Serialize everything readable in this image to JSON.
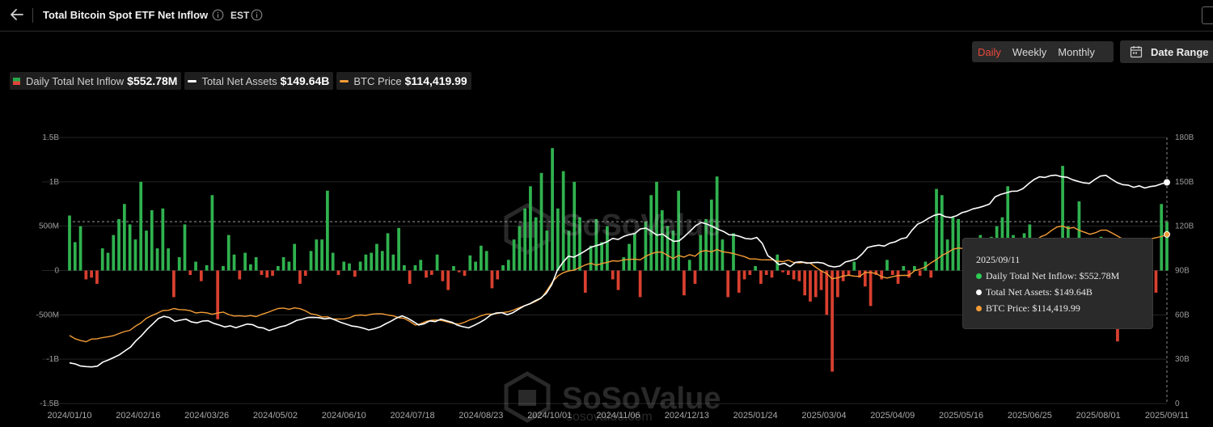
{
  "header": {
    "title": "Total Bitcoin Spot ETF Net Inflow",
    "timezone": "EST"
  },
  "period_options": [
    {
      "label": "Daily",
      "active": true
    },
    {
      "label": "Weekly",
      "active": false
    },
    {
      "label": "Monthly",
      "active": false
    }
  ],
  "date_range_label": "Date Range",
  "legend": {
    "inflow": {
      "label": "Daily Total Net Inflow",
      "value": "$552.78M"
    },
    "assets": {
      "label": "Total Net Assets",
      "value": "$149.64B"
    },
    "price": {
      "label": "BTC Price",
      "value": "$114,419.99"
    }
  },
  "tooltip": {
    "date": "2025/09/11",
    "inflow_line": "Daily Total Net Inflow: $552.78M",
    "assets_line": "Total Net Assets: $149.64B",
    "price_line": "BTC Price: $114,419.99"
  },
  "watermark": {
    "brand": "SoSoValue",
    "url": "sosovalue.com"
  },
  "colors": {
    "inflow_positive": "#30b24f",
    "inflow_negative": "#d9402f",
    "assets_line": "#ffffff",
    "price_line": "#f39c36",
    "active_period": "#e8493a",
    "tooltip_inflow_dot": "#2ecc55",
    "tooltip_assets_dot": "#ffffff",
    "tooltip_price_dot": "#f39c36"
  },
  "icons": [
    "back-arrow-icon",
    "info-icon",
    "calendar-icon",
    "edit-icon"
  ],
  "chart_data": {
    "type": "bar+line",
    "grid": "horizontal",
    "xlim": [
      "2024-01-10",
      "2025-09-11"
    ],
    "y_left": {
      "ticks": [
        "1.5B",
        "1B",
        "500M",
        "0",
        "-500M",
        "-1B",
        "-1.5B"
      ],
      "range": [
        -1.5,
        1.5
      ],
      "unit": "B USD"
    },
    "y_right": {
      "ticks": [
        "180B",
        "150B",
        "120B",
        "90B",
        "60B",
        "30B",
        "0"
      ],
      "range": [
        0,
        180
      ],
      "unit": "B USD"
    },
    "x_ticks": [
      "2024/01/10",
      "2024/02/16",
      "2024/03/26",
      "2024/05/02",
      "2024/06/10",
      "2024/07/18",
      "2024/08/23",
      "2024/10/01",
      "2024/11/06",
      "2024/12/13",
      "2025/01/24",
      "2025/03/04",
      "2025/04/09",
      "2025/05/16",
      "2025/06/25",
      "2025/08/01",
      "2025/09/11"
    ],
    "reference_line": 0.55,
    "inflow_series": {
      "name": "Daily Total Net Inflow",
      "unit": "B USD",
      "values": [
        0.62,
        0.32,
        0.5,
        -0.1,
        -0.08,
        -0.15,
        0.25,
        0.2,
        0.4,
        0.58,
        0.75,
        0.52,
        0.35,
        1.0,
        0.45,
        0.68,
        0.25,
        0.7,
        0.25,
        -0.3,
        0.15,
        0.52,
        -0.05,
        0.1,
        -0.12,
        0.06,
        0.85,
        -0.55,
        0.05,
        0.4,
        0.18,
        -0.1,
        0.2,
        0.07,
        0.15,
        -0.05,
        -0.08,
        -0.06,
        0.05,
        0.15,
        0.1,
        0.3,
        -0.15,
        -0.06,
        0.22,
        0.35,
        0.35,
        0.9,
        0.2,
        -0.05,
        0.1,
        0.08,
        -0.07,
        0.1,
        0.18,
        0.2,
        0.3,
        0.22,
        0.42,
        0.18,
        0.48,
        0.06,
        -0.15,
        0.06,
        0.12,
        -0.08,
        -0.05,
        0.18,
        -0.12,
        -0.22,
        0.05,
        -0.02,
        -0.06,
        0.17,
        0.1,
        0.28,
        0.22,
        -0.2,
        -0.1,
        0.06,
        0.12,
        0.35,
        0.5,
        0.7,
        0.95,
        0.6,
        1.1,
        0.45,
        1.38,
        0.7,
        1.12,
        0.45,
        1.0,
        0.6,
        -0.25,
        0.28,
        0.58,
        0.32,
        0.5,
        -0.1,
        -0.22,
        0.15,
        0.3,
        0.42,
        -0.3,
        0.55,
        0.85,
        1.0,
        0.68,
        0.5,
        0.45,
        0.9,
        -0.28,
        0.12,
        -0.15,
        0.4,
        0.58,
        0.8,
        1.06,
        0.35,
        -0.3,
        0.42,
        -0.25,
        -0.1,
        -0.05,
        0.05,
        -0.15,
        -0.05,
        -0.08,
        0.18,
        -0.02,
        -0.05,
        -0.1,
        -0.12,
        -0.28,
        -0.35,
        -0.3,
        -0.22,
        -0.5,
        -1.14,
        -0.3,
        -0.12,
        -0.05,
        0.1,
        -0.08,
        -0.18,
        -0.4,
        -0.05,
        -0.1,
        0.12,
        -0.05,
        -0.15,
        0.05,
        -0.08,
        0.05,
        -0.06,
        0.1,
        -0.08,
        0.92,
        0.85,
        0.35,
        0.6,
        0.58,
        0.35,
        0.1,
        0.3,
        0.4,
        0.28,
        0.38,
        0.5,
        0.6,
        0.95,
        0.4,
        -0.25,
        0.42,
        0.52,
        0.1,
        -0.05,
        0.15,
        0.2,
        0.28,
        1.18,
        0.5,
        0.3,
        0.78,
        -0.12,
        0.18,
        0.3,
        0.38,
        0.35,
        0.22,
        -0.8,
        0.25,
        0.35,
        0.15,
        0.1,
        -0.15,
        0.12,
        -0.25,
        0.75,
        0.55
      ],
      "last_value": 0.55278
    },
    "assets_series": {
      "name": "Total Net Assets",
      "unit": "B USD",
      "values": [
        27.5,
        26.8,
        25.4,
        25.0,
        24.8,
        25.3,
        28.0,
        29.5,
        31.2,
        33.0,
        35.6,
        38.2,
        42.5,
        46.0,
        50.2,
        53.8,
        57.5,
        59.0,
        58.2,
        55.6,
        56.4,
        57.1,
        55.2,
        54.6,
        55.8,
        56.0,
        54.3,
        53.1,
        51.8,
        52.6,
        51.3,
        52.5,
        53.8,
        53.4,
        51.6,
        51.1,
        49.4,
        50.6,
        51.9,
        52.7,
        54.4,
        56.3,
        57.1,
        58.2,
        58.3,
        58.1,
        57.3,
        57.8,
        56.4,
        54.8,
        53.6,
        52.4,
        51.9,
        51.0,
        49.8,
        50.6,
        51.8,
        53.9,
        55.7,
        57.9,
        59.3,
        57.8,
        55.6,
        53.1,
        54.0,
        55.9,
        55.4,
        57.1,
        56.0,
        55.0,
        53.0,
        52.0,
        51.2,
        52.9,
        54.8,
        57.0,
        59.9,
        61.3,
        61.5,
        60.1,
        61.5,
        63.8,
        66.0,
        67.4,
        69.5,
        71.3,
        74.5,
        80.5,
        90.0,
        95.4,
        99.7,
        99.0,
        101.0,
        103.2,
        105.6,
        106.8,
        107.9,
        109.5,
        111.7,
        111.0,
        113.1,
        114.3,
        115.1,
        118.1,
        118.7,
        116.4,
        113.9,
        114.7,
        112.0,
        109.7,
        110.1,
        113.2,
        116.7,
        120.4,
        122.5,
        121.4,
        119.8,
        117.9,
        116.4,
        114.2,
        114.0,
        113.0,
        111.6,
        111.3,
        112.4,
        108.3,
        100.0,
        97.4,
        94.0,
        94.9,
        92.7,
        95.5,
        95.9,
        95.0,
        95.3,
        95.5,
        95.0,
        93.1,
        92.4,
        93.0,
        95.8,
        96.7,
        97.9,
        101.2,
        105.6,
        106.5,
        107.1,
        106.5,
        108.5,
        109.4,
        111.4,
        112.2,
        117.2,
        121.3,
        123.0,
        125.4,
        127.3,
        128.2,
        126.4,
        125.9,
        127.0,
        129.1,
        130.1,
        131.7,
        132.5,
        133.6,
        135.0,
        139.8,
        141.5,
        142.5,
        143.6,
        143.7,
        145.3,
        148.6,
        151.5,
        153.4,
        153.0,
        154.2,
        154.5,
        153.4,
        153.1,
        151.4,
        150.3,
        149.3,
        148.9,
        151.6,
        153.9,
        154.4,
        151.8,
        149.5,
        148.1,
        147.8,
        146.3,
        147.3,
        145.8,
        146.8,
        147.3,
        148.6,
        149.64
      ],
      "last_value": 149.64
    },
    "price_series": {
      "name": "BTC Price",
      "unit": "thousand USD",
      "values": [
        46.0,
        43.9,
        42.6,
        41.8,
        43.6,
        43.8,
        44.6,
        45.2,
        45.9,
        47.3,
        48.7,
        49.5,
        52.3,
        54.5,
        57.7,
        59.5,
        61.1,
        62.9,
        63.1,
        64.3,
        63.6,
        63.4,
        62.8,
        61.3,
        61.7,
        61.4,
        60.4,
        61.2,
        61.9,
        60.2,
        59.2,
        59.4,
        59.0,
        59.5,
        58.8,
        60.3,
        61.5,
        62.9,
        64.3,
        64.6,
        63.8,
        64.7,
        64.2,
        62.7,
        60.7,
        60.1,
        58.6,
        58.7,
        57.2,
        57.2,
        57.3,
        58.0,
        59.5,
        59.9,
        59.6,
        60.4,
        60.8,
        60.7,
        59.9,
        59.3,
        58.1,
        57.6,
        55.6,
        53.1,
        54.0,
        55.6,
        56.4,
        56.5,
        56.0,
        55.1,
        54.1,
        53.8,
        55.0,
        56.7,
        57.8,
        59.4,
        60.5,
        60.5,
        61.0,
        61.6,
        62.1,
        63.4,
        64.9,
        66.3,
        67.5,
        69.2,
        71.3,
        76.5,
        82.3,
        86.4,
        88.5,
        89.8,
        90.3,
        92.1,
        93.8,
        94.9,
        93.6,
        94.7,
        95.5,
        96.6,
        96.3,
        97.2,
        97.5,
        97.7,
        97.2,
        99.6,
        101.4,
        102.4,
        102.4,
        100.2,
        98.1,
        100.2,
        99.1,
        100.7,
        99.7,
        102.8,
        103.5,
        102.6,
        104.2,
        102.7,
        102.2,
        101.5,
        100.4,
        99.4,
        97.8,
        97.8,
        97.3,
        97.2,
        97.3,
        96.3,
        96.0,
        97.0,
        95.4,
        95.2,
        95.6,
        94.9,
        92.2,
        89.7,
        87.9,
        84.4,
        85.0,
        86.3,
        86.8,
        86.2,
        86.0,
        88.7,
        88.7,
        88.0,
        85.8,
        84.9,
        85.8,
        86.6,
        86.7,
        86.7,
        89.9,
        90.9,
        92.4,
        95.2,
        97.4,
        100.2,
        102.1,
        104.4,
        105.2,
        104.8,
        103.4,
        102.3,
        105.4,
        108.2,
        108.6,
        107.9,
        104.4,
        104.2,
        104.5,
        105.8,
        106.0,
        107.1,
        109.9,
        112.8,
        114.3,
        117.2,
        119.5,
        120.1,
        118.5,
        119.1,
        117.2,
        115.9,
        114.5,
        115.6,
        117.3,
        117.3,
        115.4,
        113.3,
        111.3,
        108.4,
        109.1,
        109.1,
        110.5,
        111.4,
        112.2,
        113.0,
        114.41999
      ],
      "last_value": 114.41999
    }
  }
}
